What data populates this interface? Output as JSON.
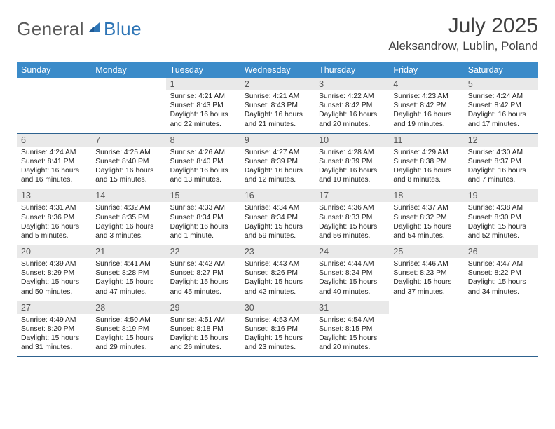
{
  "brand": {
    "part1": "General",
    "part2": "Blue"
  },
  "title": "July 2025",
  "location": "Aleksandrow, Lublin, Poland",
  "colors": {
    "header_bg": "#3b8bc9",
    "border": "#2e628f",
    "daynum_bg": "#e9e9e9",
    "text": "#222222",
    "title_text": "#404040",
    "logo_gray": "#5a5a5a",
    "logo_blue": "#2e75b6"
  },
  "daysOfWeek": [
    "Sunday",
    "Monday",
    "Tuesday",
    "Wednesday",
    "Thursday",
    "Friday",
    "Saturday"
  ],
  "weeks": [
    [
      null,
      null,
      {
        "n": "1",
        "sr": "4:21 AM",
        "ss": "8:43 PM",
        "dl": "16 hours and 22 minutes."
      },
      {
        "n": "2",
        "sr": "4:21 AM",
        "ss": "8:43 PM",
        "dl": "16 hours and 21 minutes."
      },
      {
        "n": "3",
        "sr": "4:22 AM",
        "ss": "8:42 PM",
        "dl": "16 hours and 20 minutes."
      },
      {
        "n": "4",
        "sr": "4:23 AM",
        "ss": "8:42 PM",
        "dl": "16 hours and 19 minutes."
      },
      {
        "n": "5",
        "sr": "4:24 AM",
        "ss": "8:42 PM",
        "dl": "16 hours and 17 minutes."
      }
    ],
    [
      {
        "n": "6",
        "sr": "4:24 AM",
        "ss": "8:41 PM",
        "dl": "16 hours and 16 minutes."
      },
      {
        "n": "7",
        "sr": "4:25 AM",
        "ss": "8:40 PM",
        "dl": "16 hours and 15 minutes."
      },
      {
        "n": "8",
        "sr": "4:26 AM",
        "ss": "8:40 PM",
        "dl": "16 hours and 13 minutes."
      },
      {
        "n": "9",
        "sr": "4:27 AM",
        "ss": "8:39 PM",
        "dl": "16 hours and 12 minutes."
      },
      {
        "n": "10",
        "sr": "4:28 AM",
        "ss": "8:39 PM",
        "dl": "16 hours and 10 minutes."
      },
      {
        "n": "11",
        "sr": "4:29 AM",
        "ss": "8:38 PM",
        "dl": "16 hours and 8 minutes."
      },
      {
        "n": "12",
        "sr": "4:30 AM",
        "ss": "8:37 PM",
        "dl": "16 hours and 7 minutes."
      }
    ],
    [
      {
        "n": "13",
        "sr": "4:31 AM",
        "ss": "8:36 PM",
        "dl": "16 hours and 5 minutes."
      },
      {
        "n": "14",
        "sr": "4:32 AM",
        "ss": "8:35 PM",
        "dl": "16 hours and 3 minutes."
      },
      {
        "n": "15",
        "sr": "4:33 AM",
        "ss": "8:34 PM",
        "dl": "16 hours and 1 minute."
      },
      {
        "n": "16",
        "sr": "4:34 AM",
        "ss": "8:34 PM",
        "dl": "15 hours and 59 minutes."
      },
      {
        "n": "17",
        "sr": "4:36 AM",
        "ss": "8:33 PM",
        "dl": "15 hours and 56 minutes."
      },
      {
        "n": "18",
        "sr": "4:37 AM",
        "ss": "8:32 PM",
        "dl": "15 hours and 54 minutes."
      },
      {
        "n": "19",
        "sr": "4:38 AM",
        "ss": "8:30 PM",
        "dl": "15 hours and 52 minutes."
      }
    ],
    [
      {
        "n": "20",
        "sr": "4:39 AM",
        "ss": "8:29 PM",
        "dl": "15 hours and 50 minutes."
      },
      {
        "n": "21",
        "sr": "4:41 AM",
        "ss": "8:28 PM",
        "dl": "15 hours and 47 minutes."
      },
      {
        "n": "22",
        "sr": "4:42 AM",
        "ss": "8:27 PM",
        "dl": "15 hours and 45 minutes."
      },
      {
        "n": "23",
        "sr": "4:43 AM",
        "ss": "8:26 PM",
        "dl": "15 hours and 42 minutes."
      },
      {
        "n": "24",
        "sr": "4:44 AM",
        "ss": "8:24 PM",
        "dl": "15 hours and 40 minutes."
      },
      {
        "n": "25",
        "sr": "4:46 AM",
        "ss": "8:23 PM",
        "dl": "15 hours and 37 minutes."
      },
      {
        "n": "26",
        "sr": "4:47 AM",
        "ss": "8:22 PM",
        "dl": "15 hours and 34 minutes."
      }
    ],
    [
      {
        "n": "27",
        "sr": "4:49 AM",
        "ss": "8:20 PM",
        "dl": "15 hours and 31 minutes."
      },
      {
        "n": "28",
        "sr": "4:50 AM",
        "ss": "8:19 PM",
        "dl": "15 hours and 29 minutes."
      },
      {
        "n": "29",
        "sr": "4:51 AM",
        "ss": "8:18 PM",
        "dl": "15 hours and 26 minutes."
      },
      {
        "n": "30",
        "sr": "4:53 AM",
        "ss": "8:16 PM",
        "dl": "15 hours and 23 minutes."
      },
      {
        "n": "31",
        "sr": "4:54 AM",
        "ss": "8:15 PM",
        "dl": "15 hours and 20 minutes."
      },
      null,
      null
    ]
  ]
}
